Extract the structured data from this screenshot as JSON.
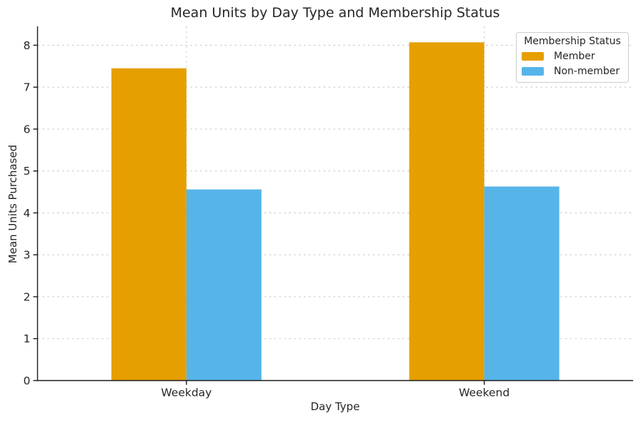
{
  "chart_data": {
    "type": "bar",
    "title": "Mean Units by Day Type and Membership Status",
    "xlabel": "Day Type",
    "ylabel": "Mean Units Purchased",
    "categories": [
      "Weekday",
      "Weekend"
    ],
    "series": [
      {
        "name": "Member",
        "color": "#E69F00",
        "values": [
          7.45,
          8.07
        ]
      },
      {
        "name": "Non-member",
        "color": "#56B4E9",
        "values": [
          4.56,
          4.63
        ]
      }
    ],
    "ylim": [
      0,
      8.45
    ],
    "yticks": [
      0,
      1,
      2,
      3,
      4,
      5,
      6,
      7,
      8
    ],
    "grid": true,
    "grid_style": "dashed",
    "legend": {
      "title": "Membership Status",
      "position": "upper right"
    },
    "colors": {
      "grid": "#cccccc",
      "spine": "#1a1a1a",
      "text": "#262626"
    }
  }
}
